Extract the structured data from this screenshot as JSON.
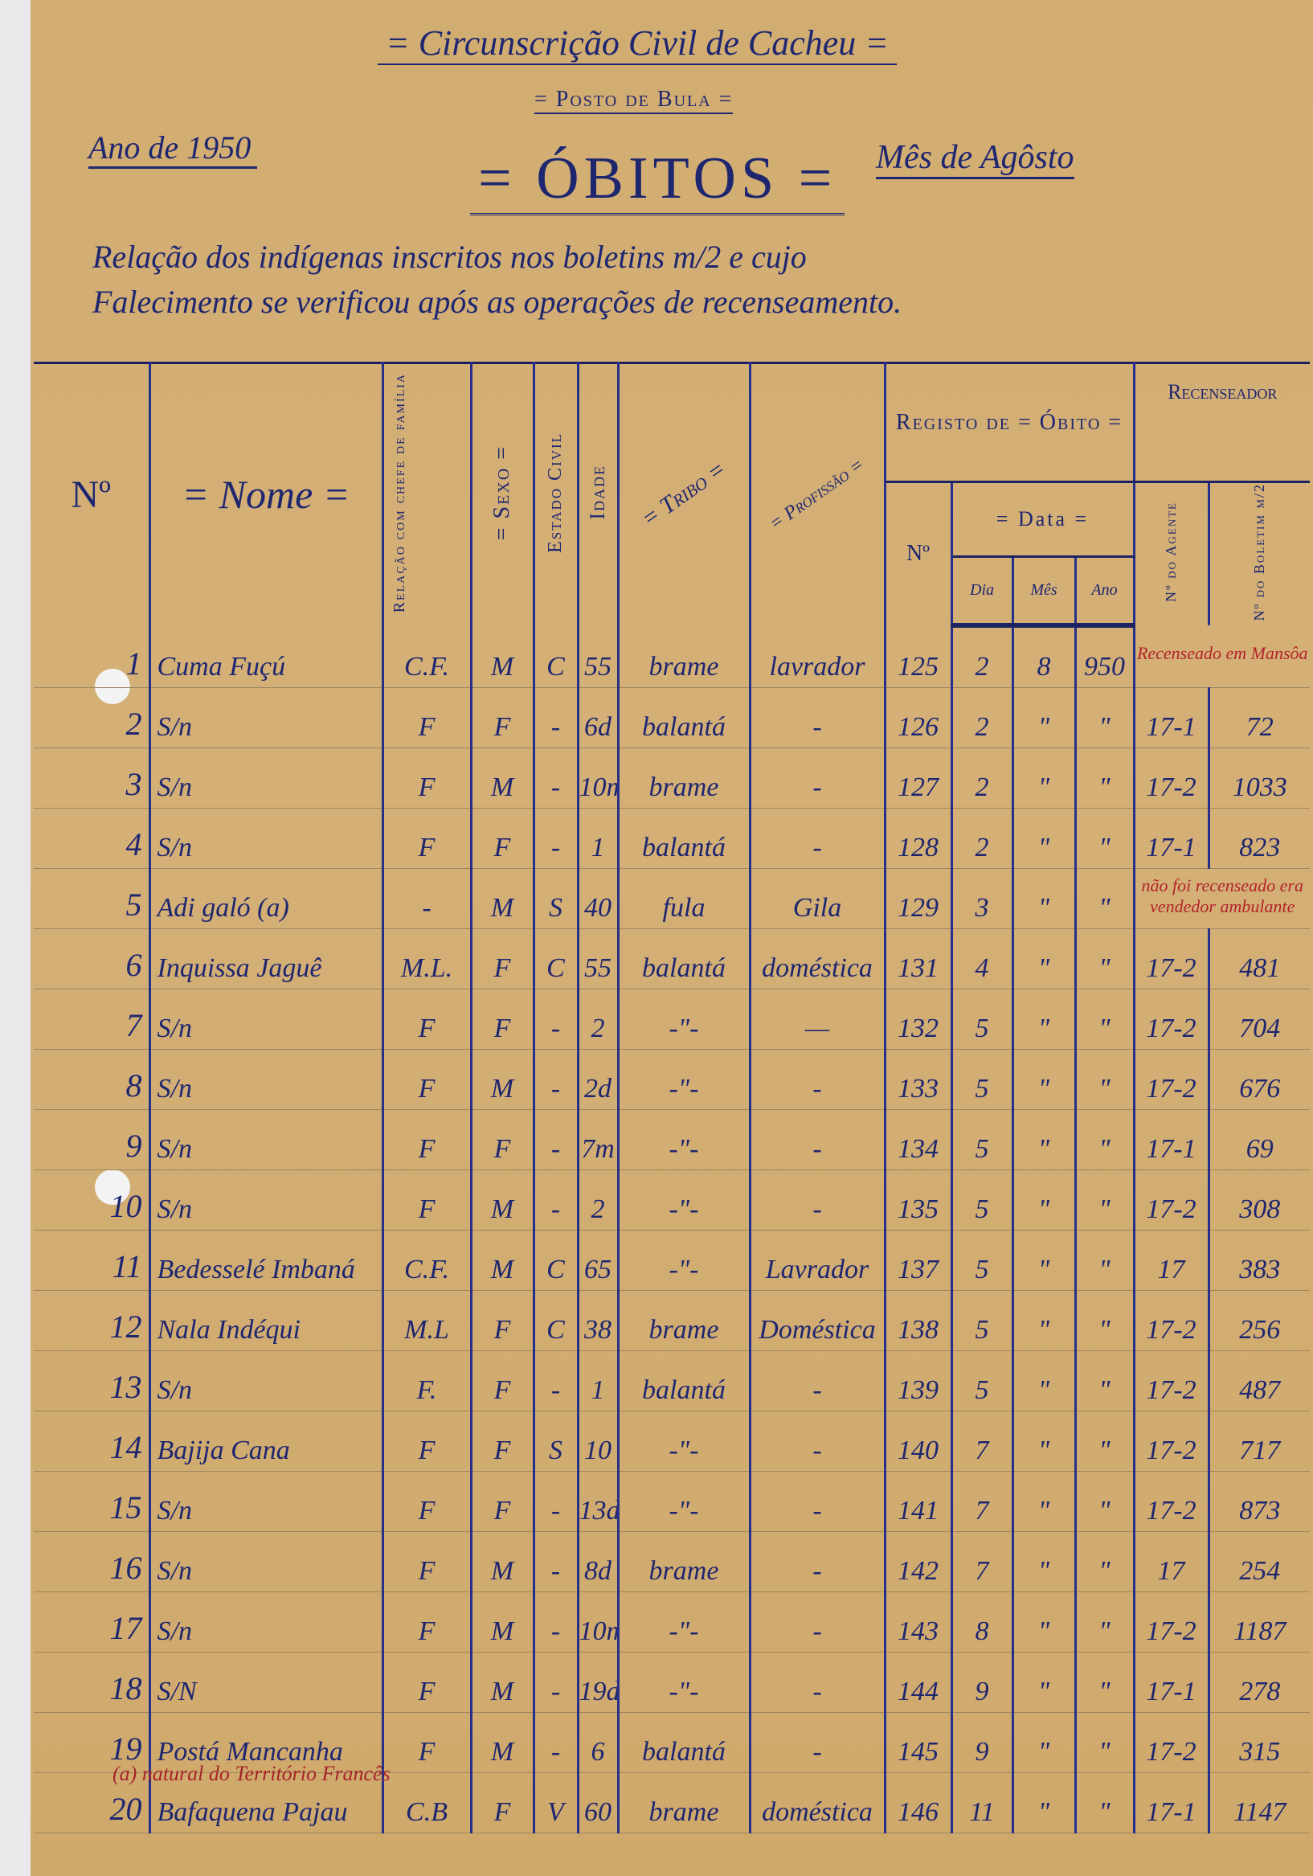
{
  "header": {
    "circunscricao": "= Circunscrição Civil de Cacheu =",
    "posto": "= Posto de Bula =",
    "ano": "Ano de 1950",
    "title": "= ÓBITOS =",
    "mes": "Mês de Agôsto",
    "relacao_line1": "Relação dos indígenas inscritos nos boletins m/2 e cujo",
    "relacao_line2": "Falecimento se verificou após as operações de recenseamento."
  },
  "columns": {
    "numero": "Nº",
    "nome": "= Nome =",
    "relacao": "Relação com chefe de família",
    "sexo": "= Sexo =",
    "estado_civil": "Estado Civil",
    "idade": "Idade",
    "tribo": "= Tribo =",
    "profissao": "= Profissão =",
    "registo": "Registo de = Óbito =",
    "registo_numero": "Nº",
    "data": "= Data =",
    "dia": "Dia",
    "mes": "Mês",
    "ano": "Ano",
    "recenseador": "Recenseador",
    "agente": "Nº do Agente",
    "boletim": "Nº do Boletim m/2"
  },
  "rows": [
    {
      "n": "1",
      "nome": "Cuma Fuçú",
      "rel": "C.F.",
      "sexo": "M",
      "civil": "C",
      "idade": "55",
      "tribo": "brame",
      "prof": "lavrador",
      "reg": "125",
      "dia": "2",
      "mes": "8",
      "ano": "950",
      "note": "Recenseado em Mansôa"
    },
    {
      "n": "2",
      "nome": "S/n",
      "rel": "F",
      "sexo": "F",
      "civil": "-",
      "idade": "6d",
      "tribo": "balantá",
      "prof": "-",
      "reg": "126",
      "dia": "2",
      "mes": "\"",
      "ano": "\"",
      "agente": "17-1",
      "boletim": "72"
    },
    {
      "n": "3",
      "nome": "S/n",
      "rel": "F",
      "sexo": "M",
      "civil": "-",
      "idade": "10m",
      "tribo": "brame",
      "prof": "-",
      "reg": "127",
      "dia": "2",
      "mes": "\"",
      "ano": "\"",
      "agente": "17-2",
      "boletim": "1033"
    },
    {
      "n": "4",
      "nome": "S/n",
      "rel": "F",
      "sexo": "F",
      "civil": "-",
      "idade": "1",
      "tribo": "balantá",
      "prof": "-",
      "reg": "128",
      "dia": "2",
      "mes": "\"",
      "ano": "\"",
      "agente": "17-1",
      "boletim": "823"
    },
    {
      "n": "5",
      "nome": "Adi galó (a)",
      "rel": "-",
      "sexo": "M",
      "civil": "S",
      "idade": "40",
      "tribo": "fula",
      "prof": "Gila",
      "reg": "129",
      "dia": "3",
      "mes": "\"",
      "ano": "\"",
      "note": "não foi recenseado era vendedor ambulante"
    },
    {
      "n": "6",
      "nome": "Inquissa Jaguê",
      "rel": "M.L.",
      "sexo": "F",
      "civil": "C",
      "idade": "55",
      "tribo": "balantá",
      "prof": "doméstica",
      "reg": "131",
      "dia": "4",
      "mes": "\"",
      "ano": "\"",
      "agente": "17-2",
      "boletim": "481"
    },
    {
      "n": "7",
      "nome": "S/n",
      "rel": "F",
      "sexo": "F",
      "civil": "-",
      "idade": "2",
      "tribo": "-\"-",
      "prof": "—",
      "reg": "132",
      "dia": "5",
      "mes": "\"",
      "ano": "\"",
      "agente": "17-2",
      "boletim": "704"
    },
    {
      "n": "8",
      "nome": "S/n",
      "rel": "F",
      "sexo": "M",
      "civil": "-",
      "idade": "2d",
      "tribo": "-\"-",
      "prof": "-",
      "reg": "133",
      "dia": "5",
      "mes": "\"",
      "ano": "\"",
      "agente": "17-2",
      "boletim": "676"
    },
    {
      "n": "9",
      "nome": "S/n",
      "rel": "F",
      "sexo": "F",
      "civil": "-",
      "idade": "7m",
      "tribo": "-\"-",
      "prof": "-",
      "reg": "134",
      "dia": "5",
      "mes": "\"",
      "ano": "\"",
      "agente": "17-1",
      "boletim": "69"
    },
    {
      "n": "10",
      "nome": "S/n",
      "rel": "F",
      "sexo": "M",
      "civil": "-",
      "idade": "2",
      "tribo": "-\"-",
      "prof": "-",
      "reg": "135",
      "dia": "5",
      "mes": "\"",
      "ano": "\"",
      "agente": "17-2",
      "boletim": "308"
    },
    {
      "n": "11",
      "nome": "Bedesselé Imbaná",
      "rel": "C.F.",
      "sexo": "M",
      "civil": "C",
      "idade": "65",
      "tribo": "-\"-",
      "prof": "Lavrador",
      "reg": "137",
      "dia": "5",
      "mes": "\"",
      "ano": "\"",
      "agente": "17",
      "boletim": "383"
    },
    {
      "n": "12",
      "nome": "Nala Indéqui",
      "rel": "M.L",
      "sexo": "F",
      "civil": "C",
      "idade": "38",
      "tribo": "brame",
      "prof": "Doméstica",
      "reg": "138",
      "dia": "5",
      "mes": "\"",
      "ano": "\"",
      "agente": "17-2",
      "boletim": "256"
    },
    {
      "n": "13",
      "nome": "S/n",
      "rel": "F.",
      "sexo": "F",
      "civil": "-",
      "idade": "1",
      "tribo": "balantá",
      "prof": "-",
      "reg": "139",
      "dia": "5",
      "mes": "\"",
      "ano": "\"",
      "agente": "17-2",
      "boletim": "487"
    },
    {
      "n": "14",
      "nome": "Bajija Cana",
      "rel": "F",
      "sexo": "F",
      "civil": "S",
      "idade": "10",
      "tribo": "-\"-",
      "prof": "-",
      "reg": "140",
      "dia": "7",
      "mes": "\"",
      "ano": "\"",
      "agente": "17-2",
      "boletim": "717"
    },
    {
      "n": "15",
      "nome": "S/n",
      "rel": "F",
      "sexo": "F",
      "civil": "-",
      "idade": "13d",
      "tribo": "-\"-",
      "prof": "-",
      "reg": "141",
      "dia": "7",
      "mes": "\"",
      "ano": "\"",
      "agente": "17-2",
      "boletim": "873"
    },
    {
      "n": "16",
      "nome": "S/n",
      "rel": "F",
      "sexo": "M",
      "civil": "-",
      "idade": "8d",
      "tribo": "brame",
      "prof": "-",
      "reg": "142",
      "dia": "7",
      "mes": "\"",
      "ano": "\"",
      "agente": "17",
      "boletim": "254"
    },
    {
      "n": "17",
      "nome": "S/n",
      "rel": "F",
      "sexo": "M",
      "civil": "-",
      "idade": "10m",
      "tribo": "-\"-",
      "prof": "-",
      "reg": "143",
      "dia": "8",
      "mes": "\"",
      "ano": "\"",
      "agente": "17-2",
      "boletim": "1187"
    },
    {
      "n": "18",
      "nome": "S/N",
      "rel": "F",
      "sexo": "M",
      "civil": "-",
      "idade": "19d",
      "tribo": "-\"-",
      "prof": "-",
      "reg": "144",
      "dia": "9",
      "mes": "\"",
      "ano": "\"",
      "agente": "17-1",
      "boletim": "278"
    },
    {
      "n": "19",
      "nome": "Postá Mancanha",
      "rel": "F",
      "sexo": "M",
      "civil": "-",
      "idade": "6",
      "tribo": "balantá",
      "prof": "-",
      "reg": "145",
      "dia": "9",
      "mes": "\"",
      "ano": "\"",
      "agente": "17-2",
      "boletim": "315"
    },
    {
      "n": "20",
      "nome": "Bafaquena Pajau",
      "rel": "C.B",
      "sexo": "F",
      "civil": "V",
      "idade": "60",
      "tribo": "brame",
      "prof": "doméstica",
      "reg": "146",
      "dia": "11",
      "mes": "\"",
      "ano": "\"",
      "agente": "17-1",
      "boletim": "1147"
    }
  ],
  "footnote": "(a) natural do Território Francês",
  "colors": {
    "paper": "#d2ad72",
    "ink": "#1e2670",
    "red_ink": "#b4232a"
  }
}
